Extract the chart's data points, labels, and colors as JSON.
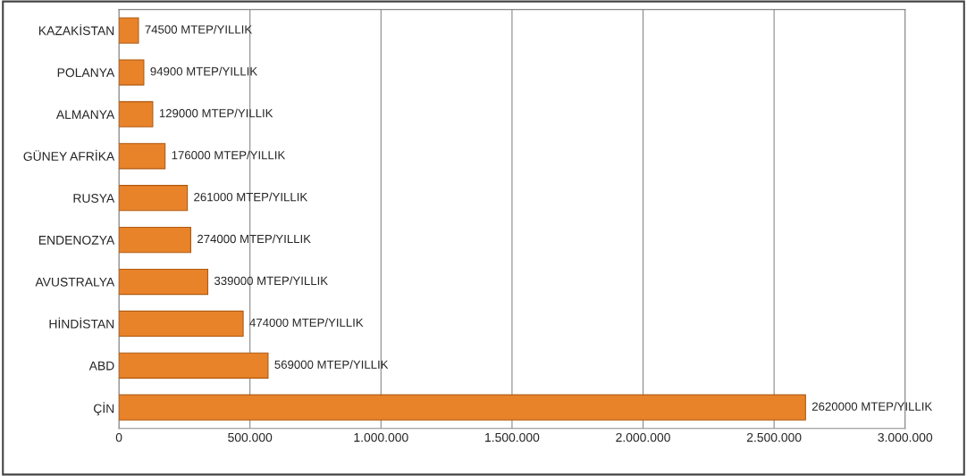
{
  "chart_data": {
    "type": "bar",
    "orientation": "horizontal",
    "categories": [
      "KAZAKİSTAN",
      "POLANYA",
      "ALMANYA",
      "GÜNEY AFRİKA",
      "RUSYA",
      "ENDENOZYA",
      "AVUSTRALYA",
      "HİNDİSTAN",
      "ABD",
      "ÇİN"
    ],
    "values": [
      74500,
      94900,
      129000,
      176000,
      261000,
      274000,
      339000,
      474000,
      569000,
      2620000
    ],
    "value_labels": [
      "74500 MTEP/YILLIK",
      "94900 MTEP/YILLIK",
      "129000 MTEP/YILLIK",
      "176000 MTEP/YILLIK",
      "261000 MTEP/YILLIK",
      "274000 MTEP/YILLIK",
      "339000 MTEP/YILLIK",
      "474000 MTEP/YILLIK",
      "569000 MTEP/YILLIK",
      "2620000 MTEP/YILLIK"
    ],
    "color": "#e8832a",
    "xlim": [
      0,
      3000000
    ],
    "xticks": [
      0,
      {
        "value": 500000,
        "label": "500.000"
      },
      {
        "value": 1000000,
        "label": "1.000.000"
      },
      {
        "value": 1500000,
        "label": "1.500.000"
      },
      {
        "value": 2000000,
        "label": "2.000.000"
      },
      {
        "value": 2500000,
        "label": "2.500.000"
      },
      {
        "value": 3000000,
        "label": "3.000.000"
      }
    ],
    "grid": "x",
    "legend": false
  }
}
